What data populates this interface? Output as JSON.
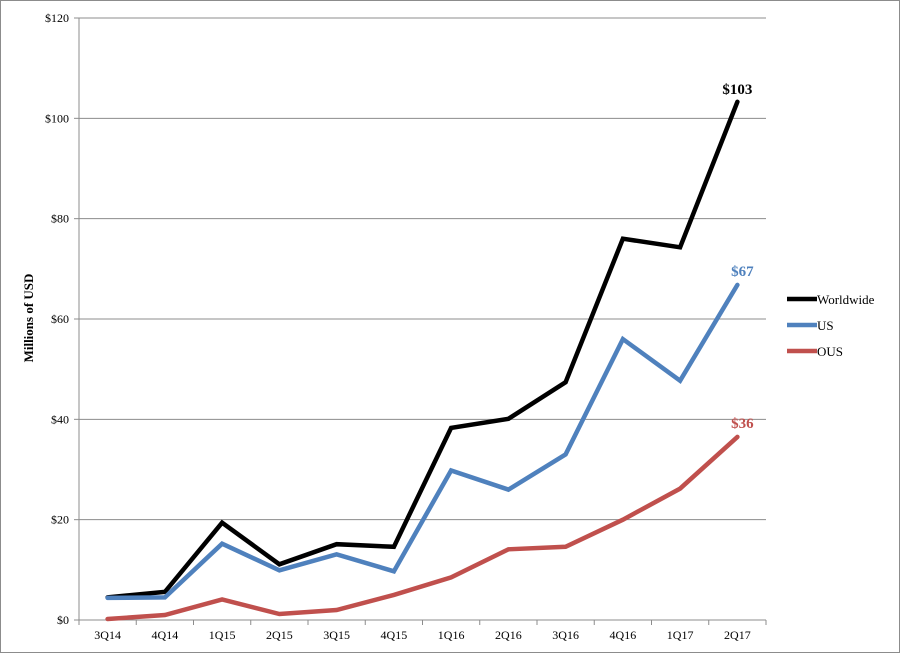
{
  "chart_data": {
    "type": "line",
    "title": "",
    "xlabel": "",
    "ylabel": "Millions of USD",
    "categories": [
      "3Q14",
      "4Q14",
      "1Q15",
      "2Q15",
      "3Q15",
      "4Q15",
      "1Q16",
      "2Q16",
      "3Q16",
      "4Q16",
      "1Q17",
      "2Q17"
    ],
    "ylim": [
      0,
      120
    ],
    "yticks": [
      0,
      20,
      40,
      60,
      80,
      100,
      120
    ],
    "ytick_labels": [
      "$0",
      "$20",
      "$40",
      "$60",
      "$80",
      "$100",
      "$120"
    ],
    "grid": "horizontal",
    "legend_position": "right",
    "series": [
      {
        "name": "Worldwide",
        "color": "#000000",
        "values": [
          4.5,
          5.6,
          19.4,
          11.1,
          15.1,
          14.6,
          38.3,
          40.1,
          47.4,
          76.0,
          74.3,
          103.3
        ],
        "end_label": "$103"
      },
      {
        "name": "US",
        "color": "#4f81bd",
        "values": [
          4.4,
          4.5,
          15.2,
          9.9,
          13.1,
          9.7,
          29.8,
          26.0,
          33.0,
          56.0,
          47.7,
          66.8
        ],
        "end_label": "$67"
      },
      {
        "name": "OUS",
        "color": "#c0504d",
        "values": [
          0.2,
          1.0,
          4.1,
          1.2,
          2.0,
          5.0,
          8.5,
          14.1,
          14.6,
          20.0,
          26.2,
          36.5
        ],
        "end_label": "$36"
      }
    ]
  }
}
